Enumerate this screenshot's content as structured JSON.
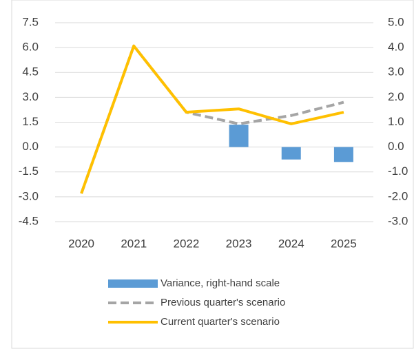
{
  "chart_data": {
    "type": "line",
    "categories": [
      "2020",
      "2021",
      "2022",
      "2023",
      "2024",
      "2025"
    ],
    "series": [
      {
        "name": "Variance, right-hand scale",
        "type": "bar",
        "axis": "y2",
        "color": "#5b9bd5",
        "values": [
          null,
          null,
          null,
          0.9,
          -0.5,
          -0.6
        ]
      },
      {
        "name": "Previous quarter's scenario",
        "type": "line",
        "dashed": true,
        "color": "#a5a5a5",
        "values": [
          -2.8,
          6.1,
          2.1,
          1.4,
          1.9,
          2.7
        ]
      },
      {
        "name": "Current quarter's scenario",
        "type": "line",
        "color": "#ffc000",
        "values": [
          -2.8,
          6.1,
          2.1,
          2.3,
          1.4,
          2.1
        ]
      }
    ],
    "ylim": [
      -4.5,
      7.5
    ],
    "yticks": [
      {
        "value": -4.5,
        "label": "-4.5"
      },
      {
        "value": -3,
        "label": "-3.0"
      },
      {
        "value": -1.5,
        "label": "-1.5"
      },
      {
        "value": 0,
        "label": "0.0"
      },
      {
        "value": 1.5,
        "label": "1.5"
      },
      {
        "value": 3,
        "label": "3.0"
      },
      {
        "value": 4.5,
        "label": "4.5"
      },
      {
        "value": 6,
        "label": "6.0"
      },
      {
        "value": 7.5,
        "label": "7.5"
      }
    ],
    "y2lim": [
      -3,
      5
    ],
    "y2ticks": [
      {
        "value": -3,
        "label": "-3.0"
      },
      {
        "value": -2,
        "label": "-2.0"
      },
      {
        "value": -1,
        "label": "-1.0"
      },
      {
        "value": 0,
        "label": "0.0"
      },
      {
        "value": 1,
        "label": "1.0"
      },
      {
        "value": 2,
        "label": "2.0"
      },
      {
        "value": 3,
        "label": "3.0"
      },
      {
        "value": 4,
        "label": "4.0"
      },
      {
        "value": 5,
        "label": "5.0"
      }
    ],
    "grid": true,
    "legend": "bottom"
  }
}
